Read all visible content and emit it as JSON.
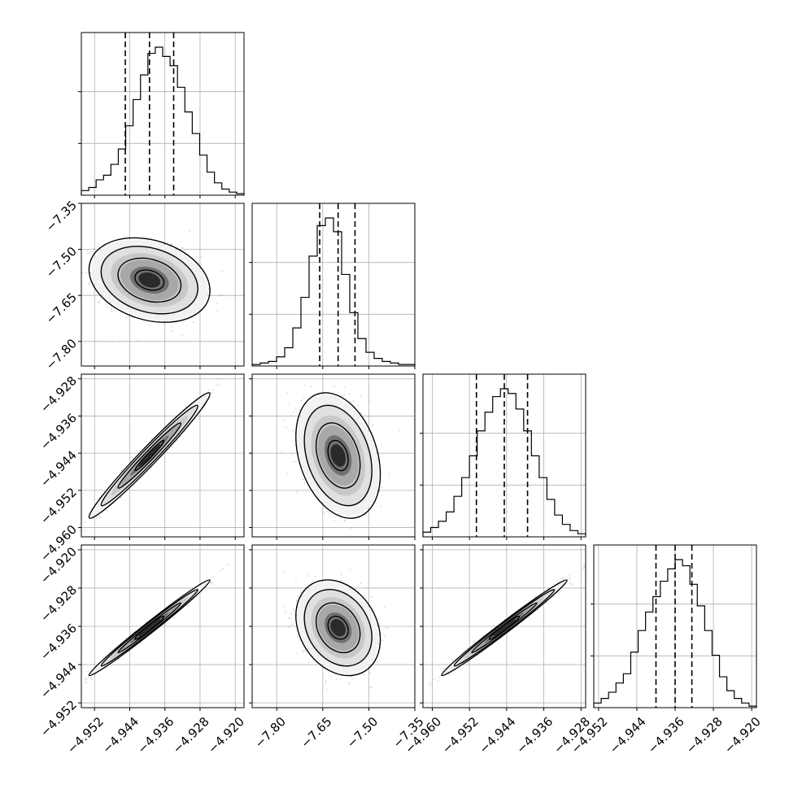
{
  "chart_data": {
    "type": "corner",
    "grid": true,
    "quantiles_marked": [
      0.16,
      0.5,
      0.84
    ],
    "parameters": [
      {
        "range": [
          -4.955,
          -4.918
        ],
        "ticks": [
          -4.952,
          -4.944,
          -4.936,
          -4.928,
          -4.92
        ],
        "tick_labels": [
          "−4.952",
          "−4.944",
          "−4.936",
          "−4.928",
          "−4.920"
        ],
        "mean": -4.9395,
        "sd": 0.0055,
        "quantiles": [
          -4.945,
          -4.9395,
          -4.934
        ]
      },
      {
        "range": [
          -7.88,
          -7.35
        ],
        "ticks": [
          -7.8,
          -7.65,
          -7.5,
          -7.35
        ],
        "tick_labels": [
          "−7.80",
          "−7.65",
          "−7.50",
          "−7.35"
        ],
        "mean": -7.6,
        "sd": 0.055,
        "quantiles": [
          -7.66,
          -7.6,
          -7.545
        ]
      },
      {
        "range": [
          -4.962,
          -4.927
        ],
        "ticks": [
          -4.96,
          -4.952,
          -4.944,
          -4.936,
          -4.928
        ],
        "tick_labels": [
          "−4.960",
          "−4.952",
          "−4.944",
          "−4.936",
          "−4.928"
        ],
        "mean": -4.9445,
        "sd": 0.0054,
        "quantiles": [
          -4.9505,
          -4.9445,
          -4.9395
        ]
      },
      {
        "range": [
          -4.953,
          -4.919
        ],
        "ticks": [
          -4.952,
          -4.944,
          -4.936,
          -4.928,
          -4.92
        ],
        "tick_labels": [
          "−4.952",
          "−4.944",
          "−4.936",
          "−4.928",
          "−4.920"
        ],
        "mean": -4.9363,
        "sd": 0.004,
        "quantiles": [
          -4.94,
          -4.936,
          -4.9325
        ]
      }
    ],
    "correlations": [
      [
        1,
        -0.25,
        0.98,
        0.99
      ],
      [
        -0.25,
        1,
        -0.3,
        -0.25
      ],
      [
        0.98,
        -0.3,
        1,
        0.99
      ],
      [
        0.99,
        -0.25,
        0.99,
        1
      ]
    ],
    "histograms": [
      [
        0.03,
        0.05,
        0.1,
        0.13,
        0.2,
        0.3,
        0.45,
        0.62,
        0.78,
        0.92,
        0.96,
        0.9,
        0.84,
        0.7,
        0.54,
        0.4,
        0.26,
        0.15,
        0.08,
        0.04,
        0.02,
        0.01
      ],
      [
        0.01,
        0.02,
        0.03,
        0.06,
        0.12,
        0.25,
        0.45,
        0.72,
        0.92,
        0.97,
        0.88,
        0.6,
        0.35,
        0.18,
        0.09,
        0.05,
        0.03,
        0.02,
        0.01,
        0.01
      ],
      [
        0.03,
        0.06,
        0.1,
        0.16,
        0.26,
        0.38,
        0.52,
        0.68,
        0.8,
        0.9,
        0.95,
        0.92,
        0.82,
        0.68,
        0.52,
        0.38,
        0.24,
        0.14,
        0.08,
        0.04,
        0.02
      ],
      [
        0.03,
        0.06,
        0.1,
        0.16,
        0.22,
        0.36,
        0.5,
        0.62,
        0.72,
        0.82,
        0.9,
        0.96,
        0.92,
        0.8,
        0.66,
        0.5,
        0.34,
        0.2,
        0.11,
        0.06,
        0.03,
        0.01
      ]
    ]
  }
}
